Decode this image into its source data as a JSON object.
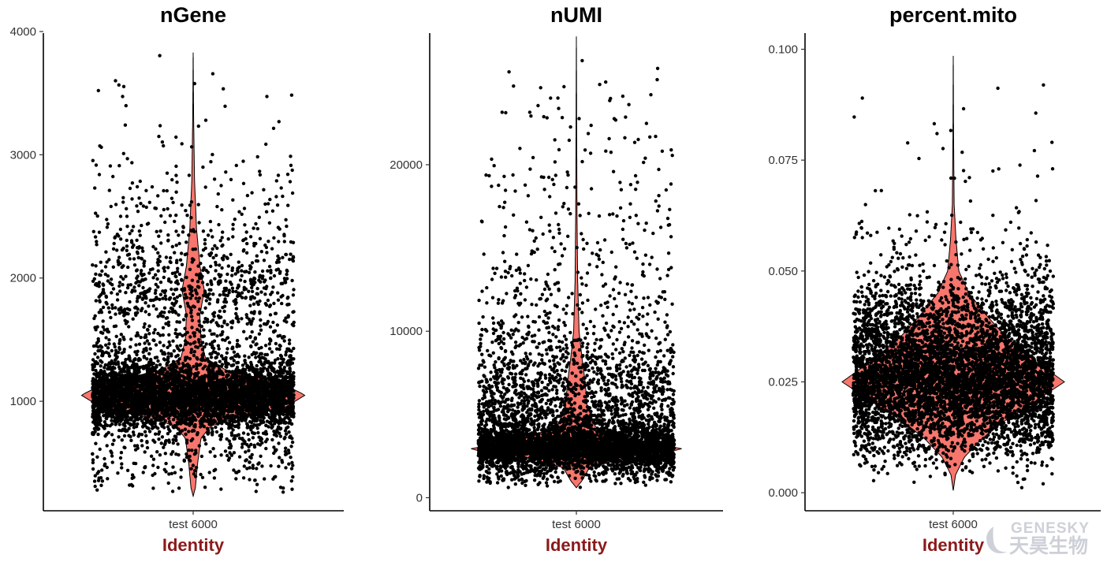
{
  "figure": {
    "watermark": {
      "brand_en": "GENESKY",
      "brand_cn": "天昊生物"
    },
    "colors": {
      "violin_fill": "#F8766D",
      "point": "#000000",
      "xlabel": "#8B1A1A",
      "axis": "#000000"
    }
  },
  "chart_data": [
    {
      "type": "violin",
      "title": "nGene",
      "xlabel": "Identity",
      "ylabel": "",
      "categories": [
        "test 6000"
      ],
      "ylim": [
        150,
        4000
      ],
      "yticks": [
        1000,
        2000,
        3000,
        4000
      ],
      "y_tick_labels": [
        "1000",
        "2000",
        "3000",
        "4000"
      ],
      "x_tick_labels": [
        "test 6000"
      ],
      "n_points_approx": 6000,
      "density_profile": [
        [
          230,
          0.0
        ],
        [
          300,
          0.02
        ],
        [
          500,
          0.04
        ],
        [
          700,
          0.07
        ],
        [
          800,
          0.16
        ],
        [
          880,
          0.45
        ],
        [
          950,
          0.82
        ],
        [
          1050,
          1.0
        ],
        [
          1150,
          0.78
        ],
        [
          1250,
          0.3
        ],
        [
          1350,
          0.11
        ],
        [
          1500,
          0.07
        ],
        [
          1700,
          0.06
        ],
        [
          1900,
          0.1
        ],
        [
          2100,
          0.06
        ],
        [
          2400,
          0.03
        ],
        [
          2800,
          0.012
        ],
        [
          3300,
          0.004
        ],
        [
          3830,
          0.0
        ]
      ],
      "y_min": 230,
      "y_max": 3830,
      "grid": false,
      "legend": "none"
    },
    {
      "type": "violin",
      "title": "nUMI",
      "xlabel": "Identity",
      "ylabel": "",
      "categories": [
        "test 6000"
      ],
      "ylim": [
        -500,
        28000
      ],
      "yticks": [
        0,
        10000,
        20000
      ],
      "y_tick_labels": [
        "0",
        "10000",
        "20000"
      ],
      "x_tick_labels": [
        "test 6000"
      ],
      "n_points_approx": 6000,
      "density_profile": [
        [
          600,
          0.0
        ],
        [
          1000,
          0.05
        ],
        [
          1800,
          0.12
        ],
        [
          2500,
          0.5
        ],
        [
          2900,
          1.0
        ],
        [
          3400,
          0.6
        ],
        [
          4200,
          0.18
        ],
        [
          5500,
          0.1
        ],
        [
          7000,
          0.08
        ],
        [
          8500,
          0.05
        ],
        [
          10000,
          0.025
        ],
        [
          13000,
          0.012
        ],
        [
          17000,
          0.006
        ],
        [
          22000,
          0.003
        ],
        [
          27700,
          0.0
        ]
      ],
      "y_min": 600,
      "y_max": 27700,
      "grid": false,
      "legend": "none"
    },
    {
      "type": "violin",
      "title": "percent.mito",
      "xlabel": "Identity",
      "ylabel": "",
      "categories": [
        "test 6000"
      ],
      "ylim": [
        -0.003,
        0.104
      ],
      "yticks": [
        0.0,
        0.025,
        0.05,
        0.075,
        0.1
      ],
      "y_tick_labels": [
        "0.000",
        "0.025",
        "0.050",
        "0.075",
        "0.100"
      ],
      "x_tick_labels": [
        "test 6000"
      ],
      "n_points_approx": 6000,
      "density_profile": [
        [
          0.0005,
          0.0
        ],
        [
          0.004,
          0.02
        ],
        [
          0.008,
          0.1
        ],
        [
          0.012,
          0.25
        ],
        [
          0.016,
          0.45
        ],
        [
          0.02,
          0.7
        ],
        [
          0.025,
          1.0
        ],
        [
          0.03,
          0.72
        ],
        [
          0.035,
          0.48
        ],
        [
          0.04,
          0.3
        ],
        [
          0.045,
          0.14
        ],
        [
          0.05,
          0.05
        ],
        [
          0.057,
          0.025
        ],
        [
          0.065,
          0.008
        ],
        [
          0.08,
          0.003
        ],
        [
          0.0985,
          0.0
        ]
      ],
      "y_min": 0.0005,
      "y_max": 0.0985,
      "grid": false,
      "legend": "none"
    }
  ]
}
